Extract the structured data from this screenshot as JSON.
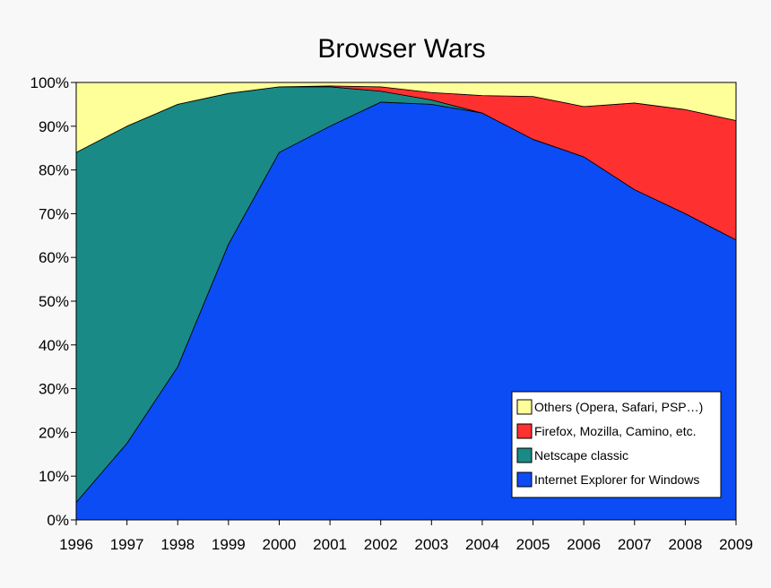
{
  "chart_data": {
    "type": "area",
    "stacked": true,
    "title": "Browser Wars",
    "xlabel": "",
    "ylabel": "",
    "x": [
      "1996",
      "1997",
      "1998",
      "1999",
      "2000",
      "2001",
      "2002",
      "2003",
      "2004",
      "2005",
      "2006",
      "2007",
      "2008",
      "2009"
    ],
    "ylim": [
      0,
      100
    ],
    "y_ticks": [
      "0%",
      "10%",
      "20%",
      "30%",
      "40%",
      "50%",
      "60%",
      "70%",
      "80%",
      "90%",
      "100%"
    ],
    "grid": false,
    "legend_position": "bottom-right",
    "series": [
      {
        "name": "Internet Explorer for Windows",
        "color": "#0b4cf5",
        "values": [
          4,
          17.5,
          35,
          63,
          84,
          90,
          95.5,
          95,
          93,
          87,
          83,
          75.5,
          70,
          64
        ]
      },
      {
        "name": "Netscape classic",
        "color": "#1a8a86",
        "values": [
          80,
          72.5,
          60,
          34.5,
          15,
          9,
          2.5,
          1,
          0,
          0,
          0,
          0,
          0,
          0
        ]
      },
      {
        "name": "Firefox, Mozilla, Camino, etc.",
        "color": "#ff3030",
        "values": [
          0,
          0,
          0,
          0,
          0,
          0.2,
          1,
          1.7,
          4,
          9.8,
          11.5,
          19.8,
          23.8,
          27.3
        ]
      },
      {
        "name": "Others (Opera, Safari, PSP…)",
        "color": "#ffff99",
        "values": [
          16,
          10,
          5,
          2.5,
          1,
          0.8,
          1,
          2.3,
          3,
          3.2,
          5.5,
          4.7,
          6.2,
          8.7
        ]
      }
    ],
    "legend_order": [
      "Others (Opera, Safari, PSP…)",
      "Firefox, Mozilla, Camino, etc.",
      "Netscape classic",
      "Internet Explorer for Windows"
    ]
  }
}
